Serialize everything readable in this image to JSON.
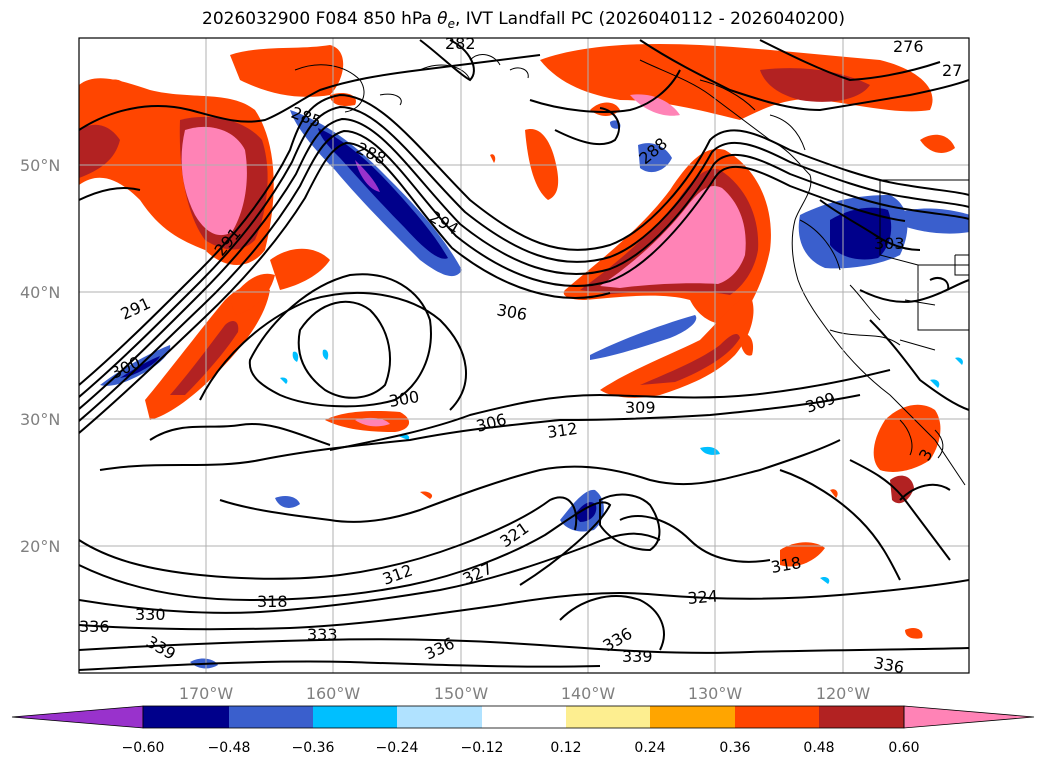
{
  "title": {
    "run": "2026032900",
    "forecast_hour": "F084",
    "level": "850 hPa",
    "variable_symbol": "θ",
    "variable_subscript": "e",
    "rest": ", IVT Landfall PC (2026040112 - 2026040200)"
  },
  "lat_labels": [
    "50°N",
    "40°N",
    "30°N",
    "20°N"
  ],
  "lon_labels": [
    "170°W",
    "160°W",
    "150°W",
    "140°W",
    "130°W",
    "120°W"
  ],
  "colorbar": {
    "colors": [
      "#9932cc",
      "#00008b",
      "#3a5fcd",
      "#00bfff",
      "#b0e2ff",
      "#ffffff",
      "#fdee90",
      "#ffa500",
      "#ff4500",
      "#b22222",
      "#ff83b6"
    ],
    "ticks": [
      "−0.60",
      "−0.48",
      "−0.36",
      "−0.24",
      "−0.12",
      "0.12",
      "0.24",
      "0.36",
      "0.48",
      "0.60"
    ]
  },
  "contour_labels": [
    "282",
    "276",
    "27",
    "285",
    "288",
    "288",
    "294",
    "291",
    "303",
    "291",
    "306",
    "300",
    "300",
    "309",
    "309",
    "306",
    "312",
    "321",
    "312",
    "327",
    "318",
    "318",
    "324",
    "330",
    "333",
    "336",
    "339",
    "336",
    "336",
    "339",
    "336",
    "3"
  ]
}
